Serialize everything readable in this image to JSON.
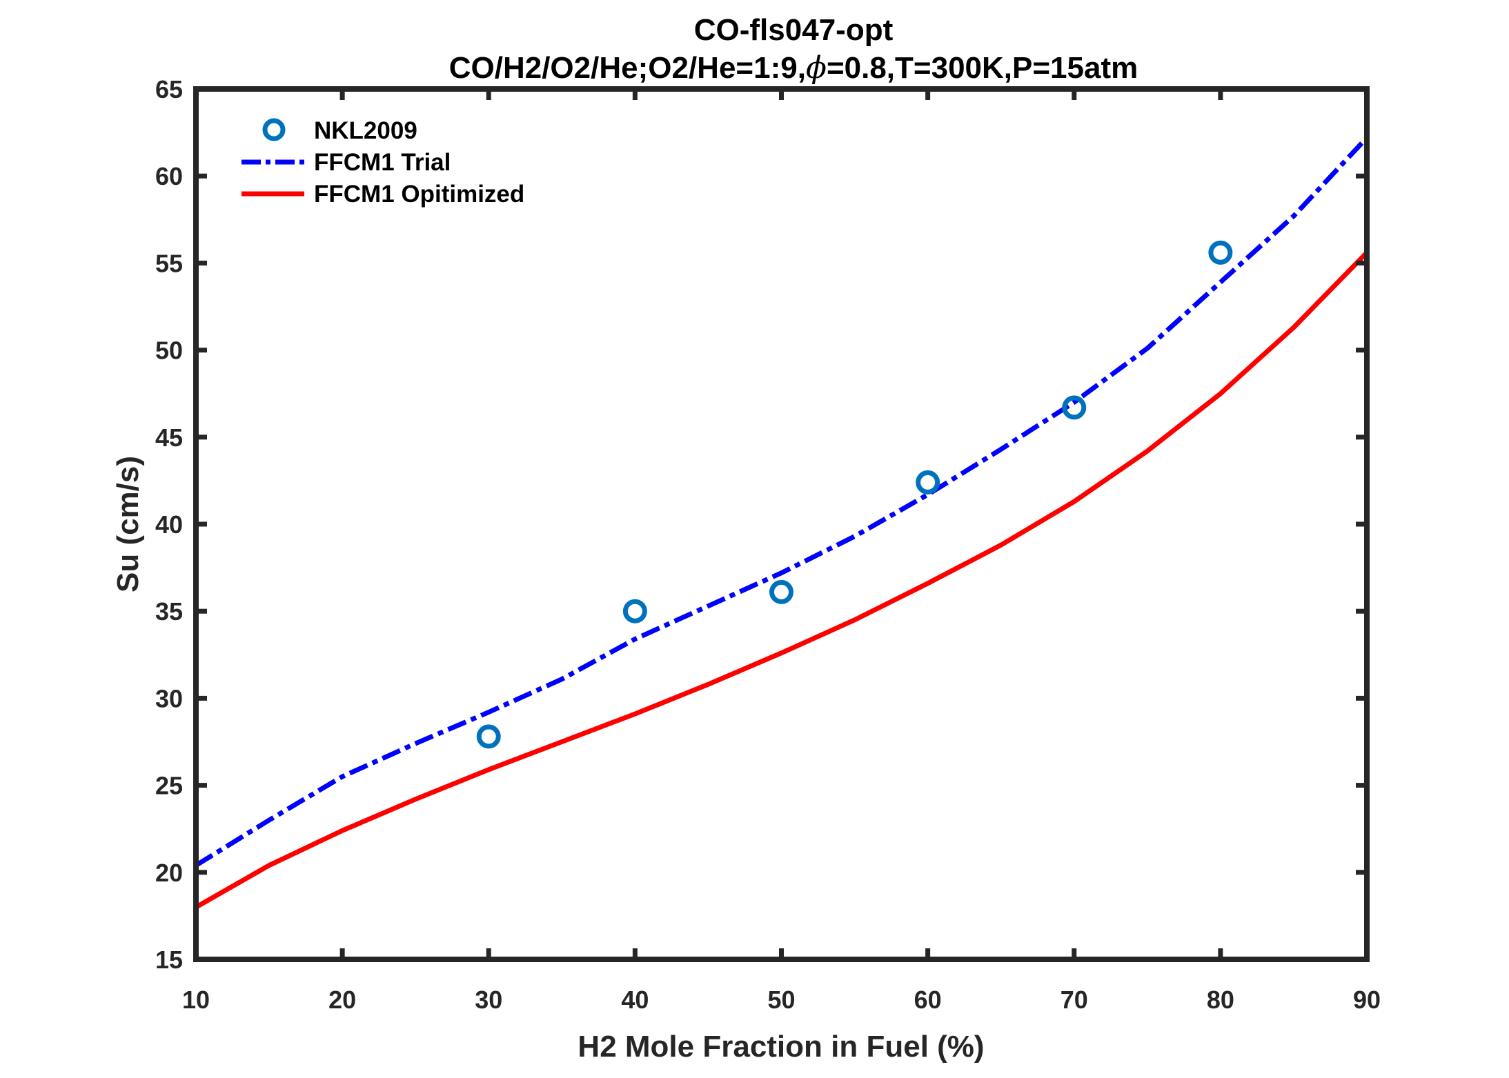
{
  "chart_data": {
    "type": "line",
    "title": "CO-fls047-opt",
    "subtitle_parts": [
      "CO/H2/O2/He;O2/He=1:9,",
      "ϕ",
      "=0.8,T=300K,P=15atm"
    ],
    "subtitle": "CO/H2/O2/He;O2/He=1:9,ϕ=0.8,T=300K,P=15atm",
    "xlabel": "H2 Mole Fraction in Fuel (%)",
    "ylabel": "Su (cm/s)",
    "xlim": [
      10,
      90
    ],
    "ylim": [
      15,
      65
    ],
    "xticks": [
      10,
      20,
      30,
      40,
      50,
      60,
      70,
      80,
      90
    ],
    "yticks": [
      15,
      20,
      25,
      30,
      35,
      40,
      45,
      50,
      55,
      60,
      65
    ],
    "xtick_labels": [
      "10",
      "20",
      "30",
      "40",
      "50",
      "60",
      "70",
      "80",
      "90"
    ],
    "ytick_labels": [
      "15",
      "20",
      "25",
      "30",
      "35",
      "40",
      "45",
      "50",
      "55",
      "60",
      "65"
    ],
    "grid": false,
    "legend_position": "top-left",
    "series": [
      {
        "name": "NKL2009",
        "kind": "scatter",
        "marker": "open-circle",
        "color": "#0072BD",
        "x": [
          30,
          40,
          50,
          60,
          70,
          80
        ],
        "y": [
          27.8,
          35.0,
          36.1,
          42.4,
          46.7,
          55.6
        ]
      },
      {
        "name": "FFCM1 Trial",
        "kind": "line",
        "style": "dash-dot",
        "color": "#0000FF",
        "x": [
          10,
          15,
          20,
          25,
          30,
          35,
          40,
          45,
          50,
          55,
          60,
          65,
          70,
          75,
          80,
          85,
          90
        ],
        "y": [
          20.4,
          23.0,
          25.5,
          27.4,
          29.2,
          31.1,
          33.4,
          35.3,
          37.2,
          39.3,
          41.7,
          44.3,
          47.0,
          50.1,
          53.9,
          57.7,
          62.2
        ]
      },
      {
        "name": "FFCM1 Opitimized",
        "kind": "line",
        "style": "solid",
        "color": "#FF0000",
        "x": [
          10,
          15,
          20,
          25,
          30,
          35,
          40,
          45,
          50,
          55,
          60,
          65,
          70,
          75,
          80,
          85,
          90
        ],
        "y": [
          18.0,
          20.4,
          22.4,
          24.2,
          25.9,
          27.5,
          29.1,
          30.8,
          32.6,
          34.5,
          36.6,
          38.8,
          41.3,
          44.2,
          47.5,
          51.3,
          55.6
        ]
      }
    ]
  },
  "colors": {
    "axis": "#262626",
    "background": "#ffffff"
  }
}
